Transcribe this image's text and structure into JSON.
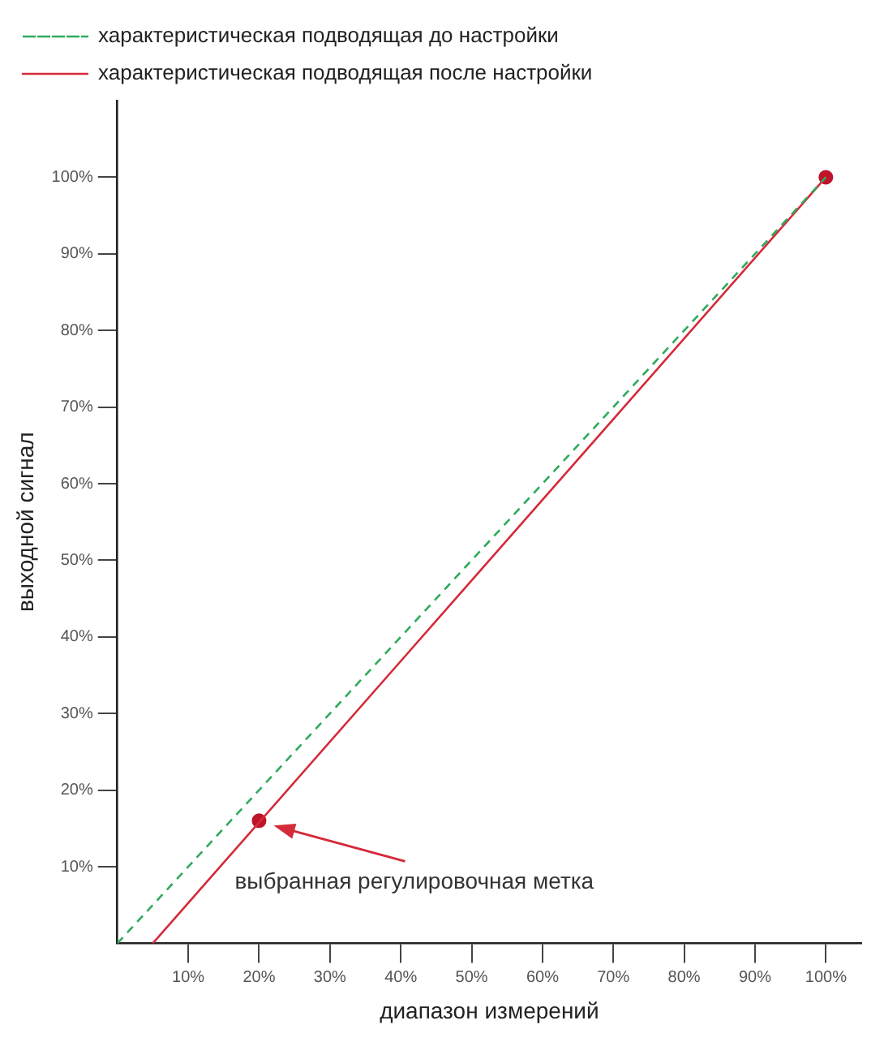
{
  "chart_data": {
    "type": "line",
    "xlabel": "диапазон измерений",
    "ylabel": "выходной сигнал",
    "xlim": [
      0,
      105
    ],
    "ylim": [
      0,
      110
    ],
    "xticks": [
      {
        "value": 10,
        "label": "10%"
      },
      {
        "value": 20,
        "label": "20%"
      },
      {
        "value": 30,
        "label": "30%"
      },
      {
        "value": 40,
        "label": "40%"
      },
      {
        "value": 50,
        "label": "50%"
      },
      {
        "value": 60,
        "label": "60%"
      },
      {
        "value": 70,
        "label": "70%"
      },
      {
        "value": 80,
        "label": "80%"
      },
      {
        "value": 90,
        "label": "90%"
      },
      {
        "value": 100,
        "label": "100%"
      }
    ],
    "yticks": [
      {
        "value": 10,
        "label": "10%"
      },
      {
        "value": 20,
        "label": "20%"
      },
      {
        "value": 30,
        "label": "30%"
      },
      {
        "value": 40,
        "label": "40%"
      },
      {
        "value": 50,
        "label": "50%"
      },
      {
        "value": 60,
        "label": "60%"
      },
      {
        "value": 70,
        "label": "70%"
      },
      {
        "value": 80,
        "label": "80%"
      },
      {
        "value": 90,
        "label": "90%"
      },
      {
        "value": 100,
        "label": "100%"
      }
    ],
    "grid": false,
    "legend": "top",
    "marker": "none",
    "series": [
      {
        "name": "характеристическая подводящая до настройки",
        "color": "#2eaa5c",
        "x": [
          0,
          100
        ],
        "values": [
          0,
          100
        ],
        "line_style": "dashed"
      },
      {
        "name": "характеристическая подводящая после настройки",
        "color": "#d42a3a",
        "x": [
          5,
          100
        ],
        "values": [
          0,
          100
        ],
        "line_style": "solid"
      },
      {
        "type": "scatter",
        "color": "#c0142a",
        "x": [
          20,
          100
        ],
        "values": [
          16,
          100
        ],
        "marker": "circle"
      }
    ],
    "annotations": [
      {
        "text": "выбранная регулировочная метка",
        "x": 20,
        "y": 16
      }
    ]
  }
}
